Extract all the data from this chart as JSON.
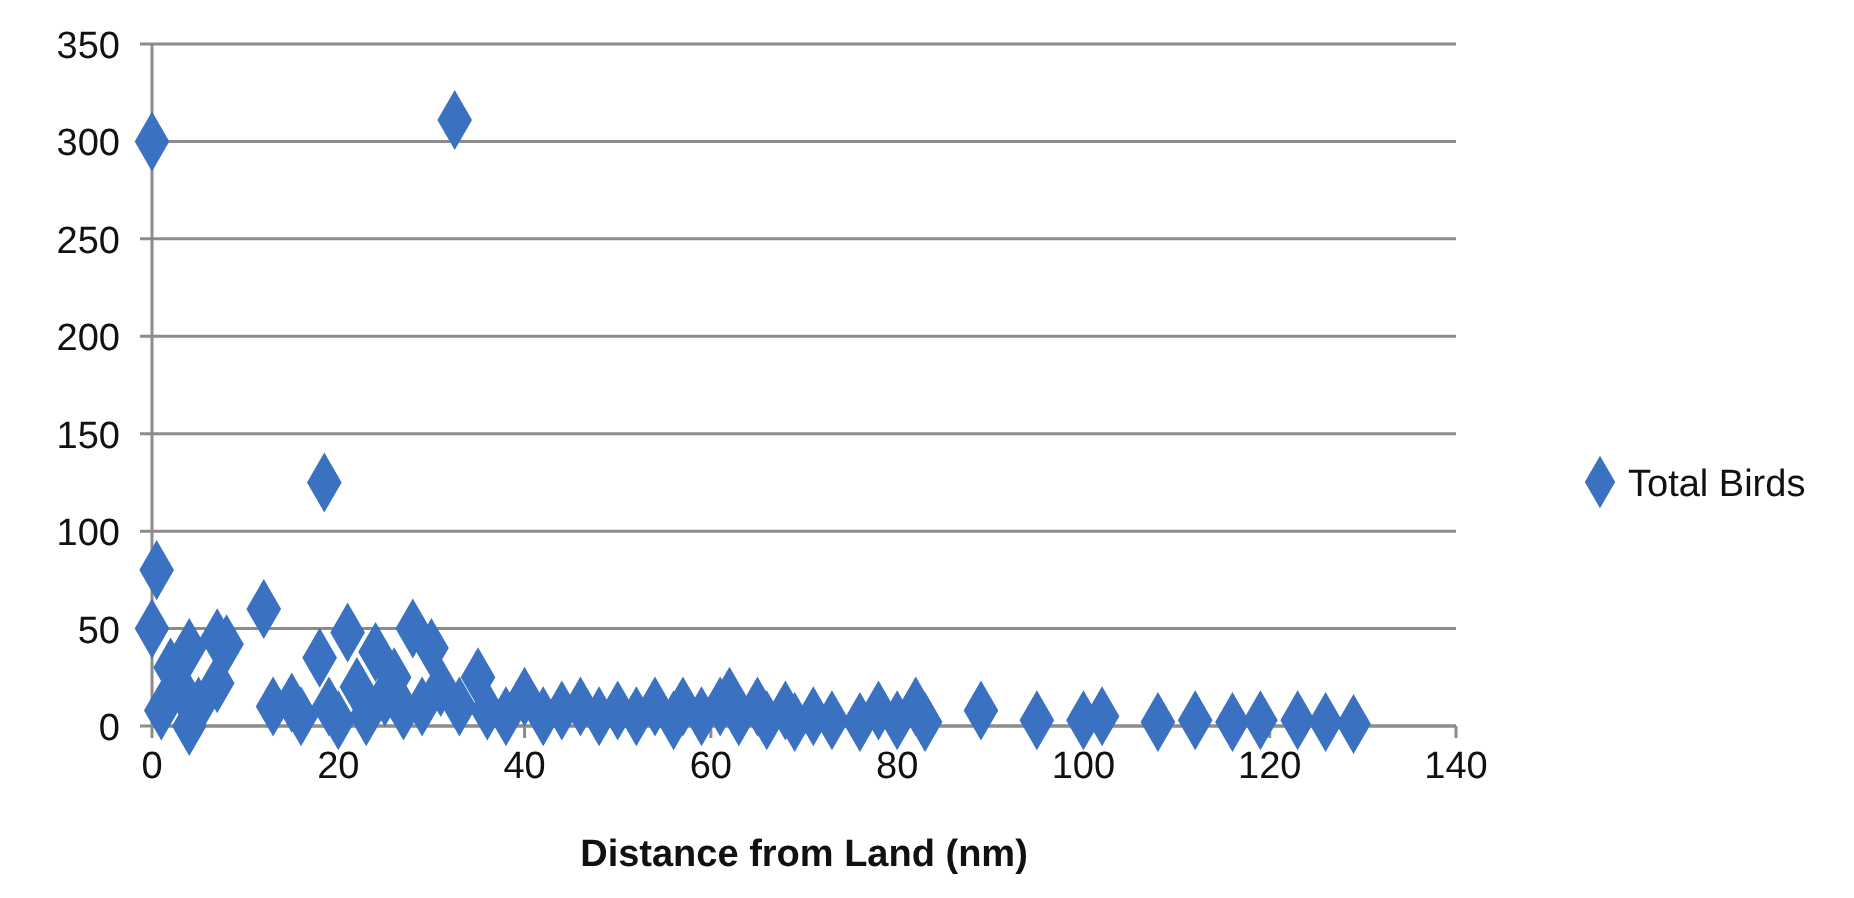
{
  "chart_data": {
    "type": "scatter",
    "xlabel": "Distance from Land (nm)",
    "xlim": [
      0,
      140
    ],
    "xticks": [
      0,
      20,
      40,
      60,
      80,
      100,
      120,
      140
    ],
    "ylim": [
      0,
      350
    ],
    "yticks": [
      0,
      50,
      100,
      150,
      200,
      250,
      300,
      350
    ],
    "grid": "y",
    "legend": "right",
    "marker": "diamond",
    "series": [
      {
        "name": "Total Birds",
        "color": "#3a71c1",
        "x": [
          0,
          32.5,
          18.5,
          0.5,
          12,
          0,
          21,
          28,
          30,
          18,
          24,
          2,
          4,
          7,
          8,
          1,
          3,
          5,
          4,
          7,
          13,
          15,
          16,
          19,
          20,
          22,
          23,
          25,
          26,
          27,
          29,
          31,
          33,
          35,
          36,
          38,
          40,
          42,
          44,
          46,
          48,
          50,
          52,
          54,
          56,
          57,
          59,
          61,
          62,
          63,
          65,
          66,
          68,
          69,
          71,
          73,
          76,
          78,
          80,
          82,
          83,
          89,
          95,
          100,
          102,
          108,
          112,
          116,
          119,
          123,
          126,
          129
        ],
        "values": [
          300,
          311,
          125,
          80,
          60,
          50,
          48,
          50,
          40,
          35,
          38,
          30,
          40,
          45,
          42,
          8,
          20,
          10,
          0,
          22,
          10,
          12,
          5,
          10,
          3,
          20,
          5,
          15,
          25,
          8,
          10,
          20,
          10,
          25,
          8,
          5,
          15,
          5,
          8,
          10,
          5,
          8,
          5,
          10,
          3,
          10,
          5,
          10,
          15,
          5,
          10,
          3,
          8,
          2,
          5,
          3,
          2,
          8,
          3,
          10,
          2,
          8,
          3,
          3,
          5,
          2,
          3,
          2,
          3,
          3,
          2,
          1
        ]
      }
    ]
  }
}
